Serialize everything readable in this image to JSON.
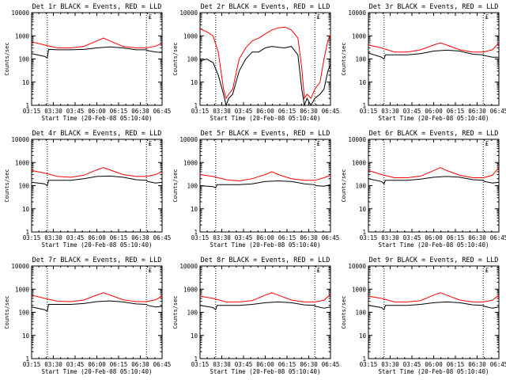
{
  "x_tick_labels": [
    "03:15",
    "03:30",
    "03:45",
    "06:00",
    "06:15",
    "06:30",
    "06:45"
  ],
  "y_tick_labels": [
    "1",
    "10",
    "100",
    "1000",
    "10000"
  ],
  "xlabel": "Start Time (20-Feb-08 05:10:40)",
  "ylabel": "Counts/sec",
  "colors": {
    "events": "#000000",
    "lld": "#ff0000",
    "axes": "#000000"
  },
  "chart_data": [
    {
      "type": "line",
      "title": "Det 1r BLACK = Events, RED = LLD",
      "ylim": [
        1,
        10000
      ],
      "yscale": "log",
      "xlim": [
        0,
        100
      ],
      "vlines": [
        12,
        88
      ],
      "marker": "£",
      "series": [
        {
          "name": "Events",
          "x": [
            0,
            10,
            12,
            13,
            20,
            30,
            40,
            50,
            60,
            70,
            80,
            88,
            89,
            95,
            100
          ],
          "y": [
            170,
            130,
            110,
            260,
            250,
            250,
            260,
            300,
            330,
            300,
            250,
            250,
            230,
            200,
            190
          ]
        },
        {
          "name": "LLD",
          "x": [
            0,
            10,
            20,
            30,
            40,
            50,
            55,
            60,
            70,
            80,
            88,
            95,
            100
          ],
          "y": [
            550,
            400,
            300,
            300,
            350,
            600,
            800,
            600,
            350,
            300,
            300,
            360,
            480
          ]
        }
      ]
    },
    {
      "type": "line",
      "title": "Det 2r BLACK = Events, RED = LLD",
      "ylim": [
        1,
        10000
      ],
      "yscale": "log",
      "xlim": [
        0,
        100
      ],
      "vlines": [
        12,
        88
      ],
      "marker": "£",
      "series": [
        {
          "name": "Events",
          "x": [
            0,
            5,
            10,
            14,
            18,
            20,
            22,
            25,
            30,
            35,
            40,
            45,
            50,
            55,
            60,
            65,
            70,
            75,
            78,
            80,
            82,
            85,
            88,
            92,
            95,
            98,
            100
          ],
          "y": [
            80,
            100,
            70,
            20,
            3,
            1,
            2,
            3,
            30,
            100,
            200,
            200,
            300,
            350,
            320,
            300,
            350,
            150,
            5,
            1,
            2,
            1,
            2,
            3,
            5,
            30,
            60
          ]
        },
        {
          "name": "LLD",
          "x": [
            0,
            5,
            10,
            14,
            18,
            20,
            22,
            25,
            30,
            35,
            40,
            45,
            50,
            55,
            60,
            65,
            70,
            75,
            78,
            80,
            82,
            85,
            88,
            92,
            95,
            98,
            100
          ],
          "y": [
            2000,
            1500,
            1000,
            200,
            5,
            2,
            3,
            5,
            100,
            300,
            600,
            800,
            1200,
            1800,
            2200,
            2400,
            1800,
            800,
            40,
            2,
            3,
            2,
            5,
            10,
            100,
            600,
            1100
          ]
        }
      ]
    },
    {
      "type": "line",
      "title": "Det 3r BLACK = Events, RED = LLD",
      "ylim": [
        1,
        10000
      ],
      "yscale": "log",
      "xlim": [
        0,
        100
      ],
      "vlines": [
        12,
        88
      ],
      "marker": "£",
      "series": [
        {
          "name": "Events",
          "x": [
            0,
            10,
            12,
            13,
            20,
            30,
            40,
            50,
            60,
            70,
            80,
            88,
            89,
            95,
            100
          ],
          "y": [
            180,
            120,
            100,
            150,
            150,
            150,
            170,
            220,
            240,
            220,
            160,
            150,
            140,
            120,
            120
          ]
        },
        {
          "name": "LLD",
          "x": [
            0,
            10,
            20,
            30,
            40,
            50,
            55,
            60,
            70,
            80,
            88,
            95,
            100
          ],
          "y": [
            400,
            300,
            200,
            200,
            250,
            400,
            500,
            400,
            250,
            200,
            200,
            250,
            500
          ]
        }
      ]
    },
    {
      "type": "line",
      "title": "Det 4r BLACK = Events, RED = LLD",
      "ylim": [
        1,
        10000
      ],
      "yscale": "log",
      "xlim": [
        0,
        100
      ],
      "vlines": [
        12,
        88
      ],
      "marker": "£",
      "series": [
        {
          "name": "Events",
          "x": [
            0,
            10,
            12,
            13,
            20,
            30,
            40,
            50,
            60,
            70,
            80,
            88,
            89,
            95,
            100
          ],
          "y": [
            140,
            120,
            100,
            170,
            170,
            170,
            200,
            250,
            260,
            230,
            180,
            170,
            150,
            130,
            140
          ]
        },
        {
          "name": "LLD",
          "x": [
            0,
            10,
            20,
            30,
            40,
            50,
            55,
            60,
            70,
            80,
            88,
            95,
            100
          ],
          "y": [
            450,
            350,
            250,
            230,
            280,
            480,
            600,
            480,
            300,
            250,
            250,
            300,
            400
          ]
        }
      ]
    },
    {
      "type": "line",
      "title": "Det 5r BLACK = Events, RED = LLD",
      "ylim": [
        1,
        10000
      ],
      "yscale": "log",
      "xlim": [
        0,
        100
      ],
      "vlines": [
        12,
        88
      ],
      "marker": "£",
      "series": [
        {
          "name": "Events",
          "x": [
            0,
            10,
            12,
            13,
            20,
            30,
            40,
            50,
            60,
            70,
            80,
            88,
            89,
            95,
            100
          ],
          "y": [
            100,
            90,
            80,
            110,
            110,
            110,
            120,
            150,
            160,
            150,
            120,
            110,
            100,
            95,
            110
          ]
        },
        {
          "name": "LLD",
          "x": [
            0,
            10,
            20,
            30,
            40,
            50,
            55,
            60,
            70,
            80,
            88,
            95,
            100
          ],
          "y": [
            300,
            250,
            180,
            160,
            200,
            300,
            400,
            300,
            200,
            170,
            170,
            220,
            280
          ]
        }
      ]
    },
    {
      "type": "line",
      "title": "Det 6r BLACK = Events, RED = LLD",
      "ylim": [
        1,
        10000
      ],
      "yscale": "log",
      "xlim": [
        0,
        100
      ],
      "vlines": [
        12,
        88
      ],
      "marker": "£",
      "series": [
        {
          "name": "Events",
          "x": [
            0,
            10,
            12,
            13,
            20,
            30,
            40,
            50,
            60,
            70,
            80,
            88,
            89,
            95,
            100
          ],
          "y": [
            200,
            150,
            120,
            170,
            170,
            170,
            190,
            230,
            250,
            230,
            180,
            170,
            150,
            130,
            140
          ]
        },
        {
          "name": "LLD",
          "x": [
            0,
            10,
            20,
            30,
            40,
            50,
            55,
            60,
            70,
            80,
            88,
            95,
            100
          ],
          "y": [
            450,
            300,
            220,
            220,
            260,
            450,
            600,
            450,
            280,
            220,
            220,
            280,
            600
          ]
        }
      ]
    },
    {
      "type": "line",
      "title": "Det 7r BLACK = Events, RED = LLD",
      "ylim": [
        1,
        10000
      ],
      "yscale": "log",
      "xlim": [
        0,
        100
      ],
      "vlines": [
        12,
        88
      ],
      "marker": "£",
      "series": [
        {
          "name": "Events",
          "x": [
            0,
            10,
            12,
            13,
            20,
            30,
            40,
            50,
            60,
            70,
            80,
            88,
            89,
            95,
            100
          ],
          "y": [
            170,
            130,
            110,
            220,
            220,
            220,
            240,
            290,
            310,
            280,
            230,
            220,
            200,
            170,
            180
          ]
        },
        {
          "name": "LLD",
          "x": [
            0,
            10,
            20,
            30,
            40,
            50,
            55,
            60,
            70,
            80,
            88,
            95,
            100
          ],
          "y": [
            550,
            400,
            300,
            290,
            340,
            560,
            700,
            560,
            350,
            290,
            290,
            350,
            500
          ]
        }
      ]
    },
    {
      "type": "line",
      "title": "Det 8r BLACK = Events, RED = LLD",
      "ylim": [
        1,
        10000
      ],
      "yscale": "log",
      "xlim": [
        0,
        100
      ],
      "vlines": [
        12,
        88
      ],
      "marker": "£",
      "series": [
        {
          "name": "Events",
          "x": [
            0,
            10,
            12,
            13,
            20,
            30,
            40,
            50,
            60,
            70,
            80,
            88,
            89,
            95,
            100
          ],
          "y": [
            200,
            160,
            130,
            200,
            200,
            200,
            220,
            260,
            280,
            260,
            210,
            200,
            180,
            150,
            170
          ]
        },
        {
          "name": "LLD",
          "x": [
            0,
            10,
            20,
            30,
            40,
            50,
            55,
            60,
            70,
            80,
            88,
            95,
            100
          ],
          "y": [
            500,
            400,
            280,
            280,
            320,
            550,
            700,
            550,
            340,
            280,
            280,
            330,
            600
          ]
        }
      ]
    },
    {
      "type": "line",
      "title": "Det 9r BLACK = Events, RED = LLD",
      "ylim": [
        1,
        10000
      ],
      "yscale": "log",
      "xlim": [
        0,
        100
      ],
      "vlines": [
        12,
        88
      ],
      "marker": "£",
      "series": [
        {
          "name": "Events",
          "x": [
            0,
            10,
            12,
            13,
            20,
            30,
            40,
            50,
            60,
            70,
            80,
            88,
            89,
            95,
            100
          ],
          "y": [
            200,
            160,
            130,
            200,
            200,
            200,
            220,
            260,
            280,
            260,
            210,
            200,
            180,
            150,
            170
          ]
        },
        {
          "name": "LLD",
          "x": [
            0,
            10,
            20,
            30,
            40,
            50,
            55,
            60,
            70,
            80,
            88,
            95,
            100
          ],
          "y": [
            500,
            400,
            280,
            280,
            320,
            550,
            700,
            550,
            340,
            280,
            280,
            330,
            550
          ]
        }
      ]
    }
  ]
}
